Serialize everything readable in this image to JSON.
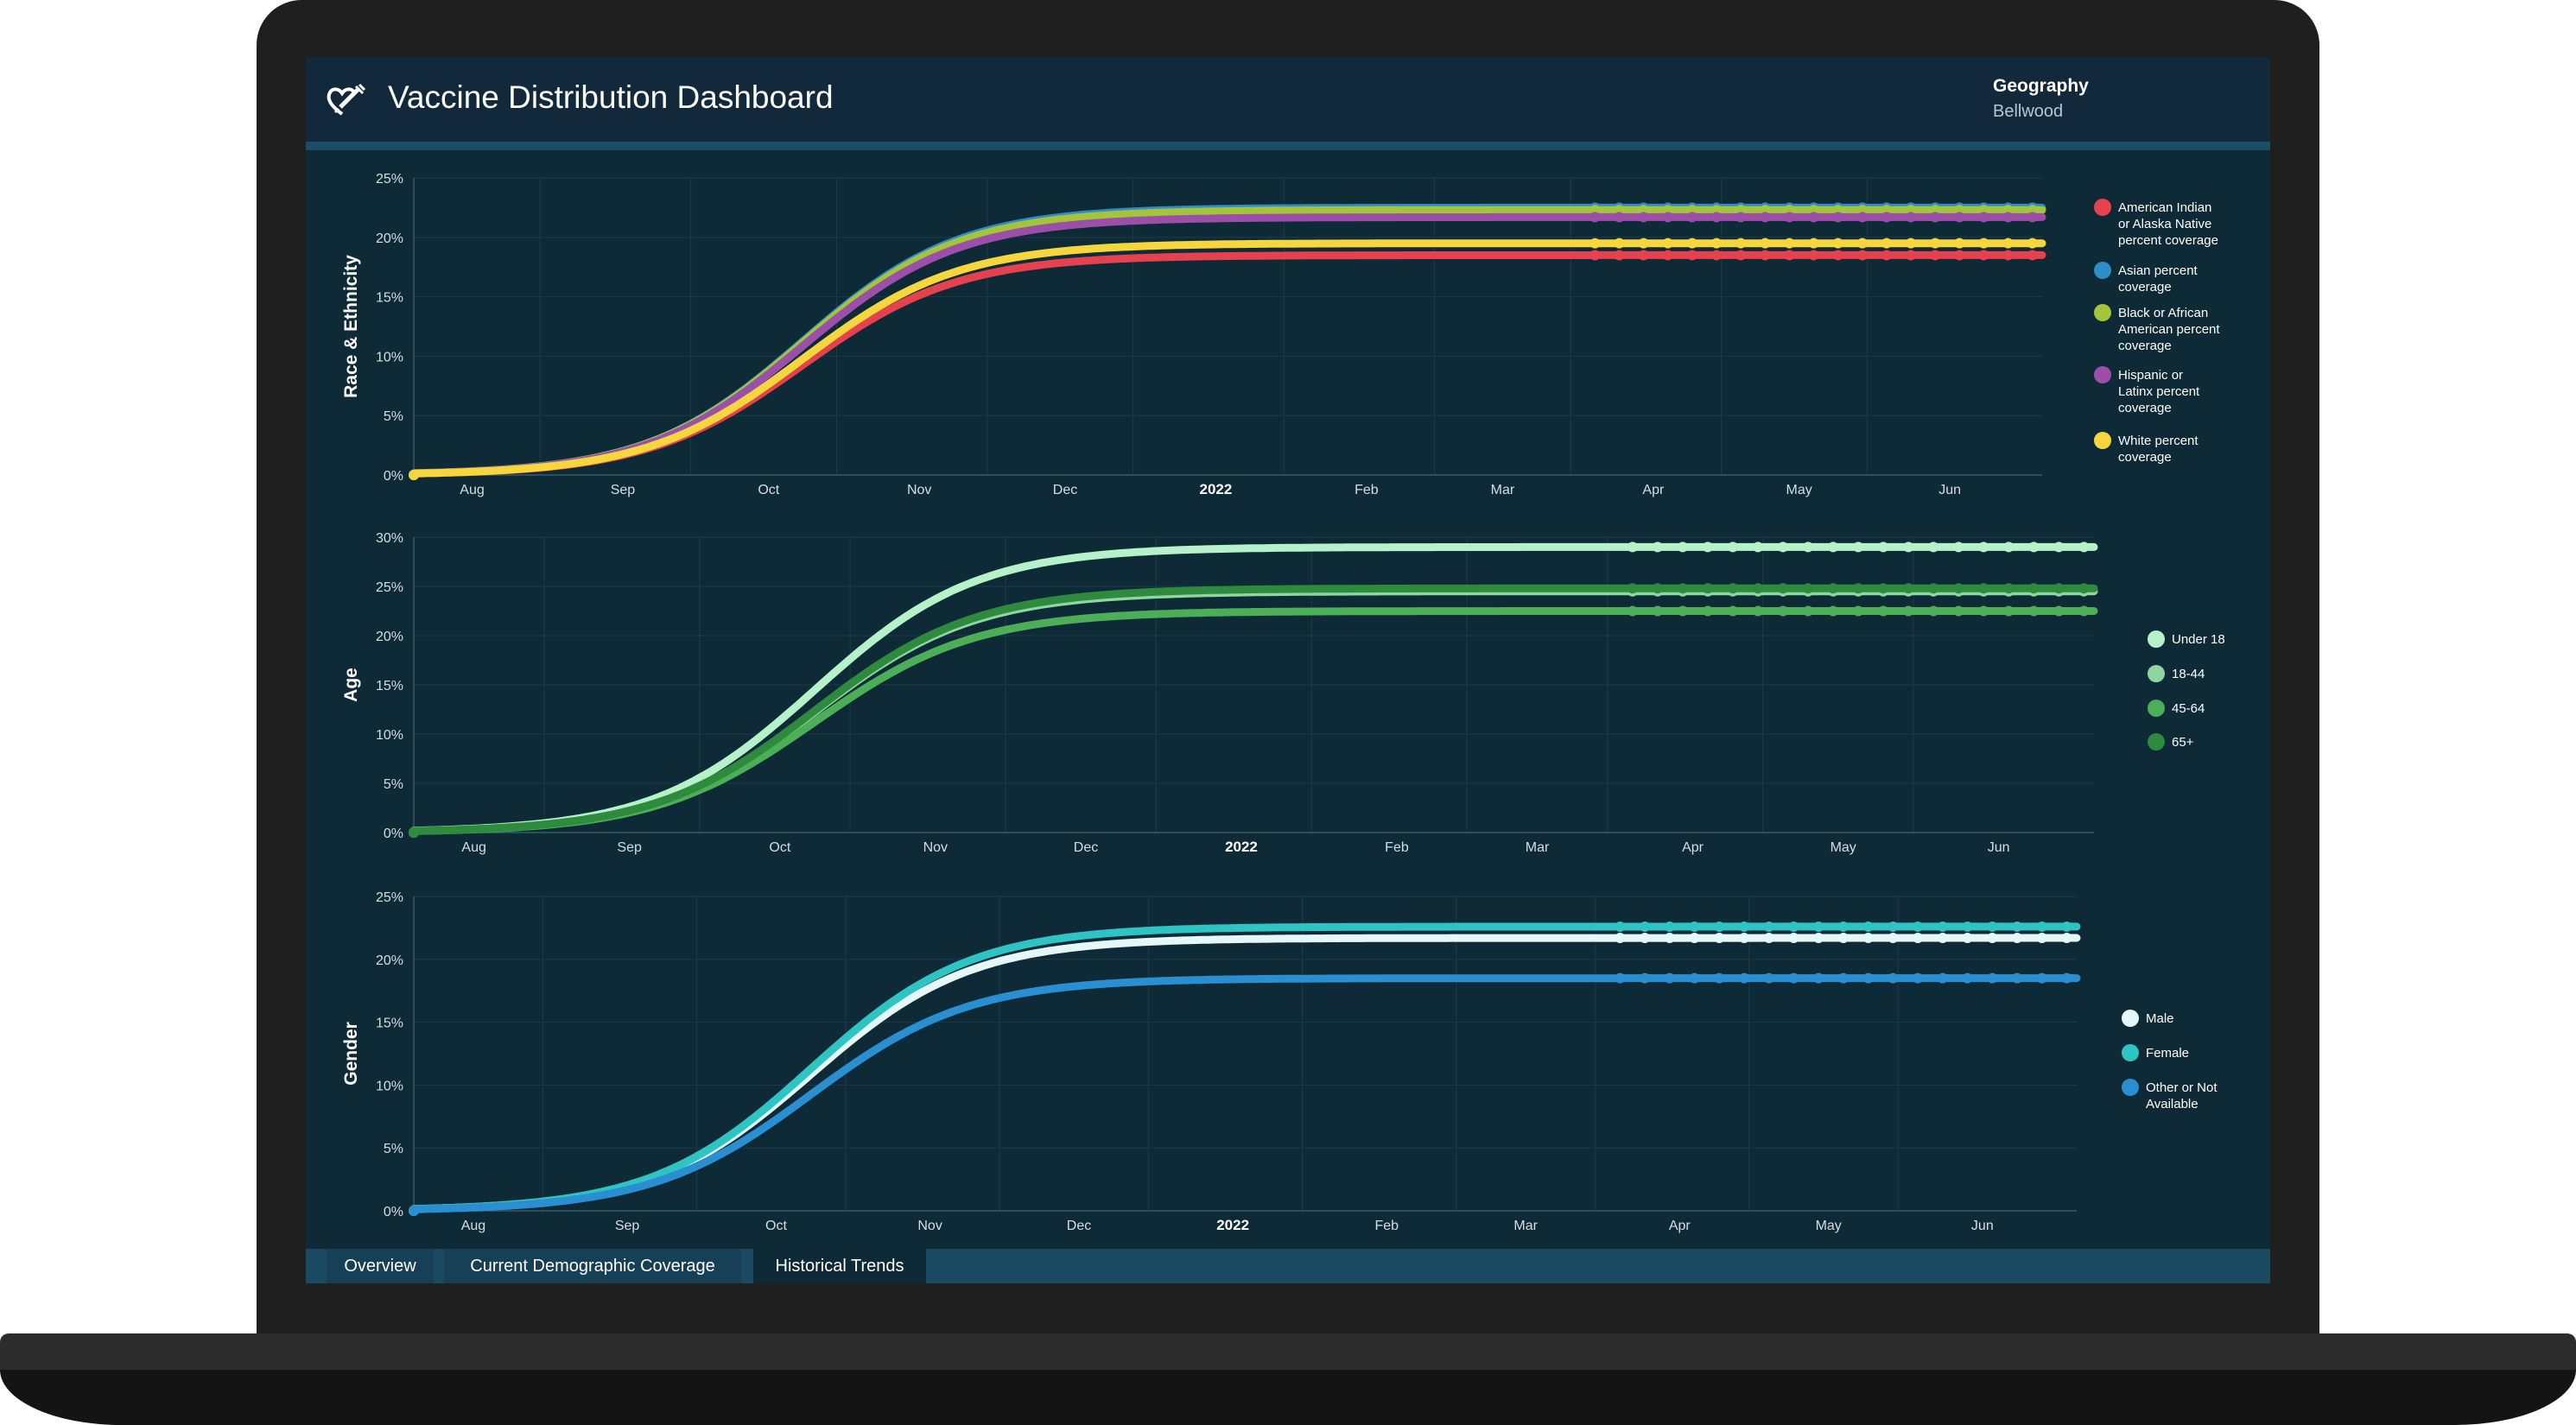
{
  "header": {
    "title": "Vaccine Distribution Dashboard",
    "icon": "heart-syringe-icon",
    "geography_label": "Geography",
    "geography_value": "Bellwood"
  },
  "tabs": [
    {
      "label": "Overview",
      "active": false
    },
    {
      "label": "Current Demographic Coverage",
      "active": false
    },
    {
      "label": "Historical Trends",
      "active": true
    }
  ],
  "chart_data": [
    {
      "type": "line",
      "ylabel": "Race & Ethnicity",
      "ylim": [
        0,
        25
      ],
      "yticks": [
        "0%",
        "5%",
        "10%",
        "15%",
        "20%",
        "25%"
      ],
      "x_tick_labels": [
        "Aug",
        "Sep",
        "Oct",
        "Nov",
        "Dec",
        "2022",
        "Feb",
        "Mar",
        "Apr",
        "May",
        "Jun"
      ],
      "x_start": "2021-07-20",
      "x_end": "2022-06-20",
      "grid": true,
      "legend_position": "right",
      "series": [
        {
          "name": "American Indian or Alaska Native percent coverage",
          "color": "#e5414f",
          "final": 18.5
        },
        {
          "name": "Asian percent coverage",
          "color": "#2e8cc8",
          "final": 22.5
        },
        {
          "name": "Black or African American percent coverage",
          "color": "#a3c43b",
          "final": 22.3
        },
        {
          "name": "Hispanic or Latinx percent coverage",
          "color": "#9b4fa8",
          "final": 21.7
        },
        {
          "name": "White percent coverage",
          "color": "#f5d63d",
          "final": 19.5
        }
      ]
    },
    {
      "type": "line",
      "ylabel": "Age",
      "ylim": [
        0,
        30
      ],
      "yticks": [
        "0%",
        "5%",
        "10%",
        "15%",
        "20%",
        "25%",
        "30%"
      ],
      "x_tick_labels": [
        "Aug",
        "Sep",
        "Oct",
        "Nov",
        "Dec",
        "2022",
        "Feb",
        "Mar",
        "Apr",
        "May",
        "Jun"
      ],
      "x_start": "2021-07-20",
      "x_end": "2022-06-20",
      "grid": true,
      "legend_position": "right",
      "series": [
        {
          "name": "Under 18",
          "color": "#b5f2c9",
          "final": 29.0
        },
        {
          "name": "18-44",
          "color": "#8fd6a0",
          "final": 24.5
        },
        {
          "name": "45-64",
          "color": "#4caf58",
          "final": 22.5
        },
        {
          "name": "65+",
          "color": "#2e8a3d",
          "final": 24.8
        }
      ]
    },
    {
      "type": "line",
      "ylabel": "Gender",
      "ylim": [
        0,
        25
      ],
      "yticks": [
        "0%",
        "5%",
        "10%",
        "15%",
        "20%",
        "25%"
      ],
      "x_tick_labels": [
        "Aug",
        "Sep",
        "Oct",
        "Nov",
        "Dec",
        "2022",
        "Feb",
        "Mar",
        "Apr",
        "May",
        "Jun"
      ],
      "x_start": "2021-07-20",
      "x_end": "2022-06-20",
      "grid": true,
      "legend_position": "right",
      "series": [
        {
          "name": "Male",
          "color": "#e6f7f7",
          "final": 21.7
        },
        {
          "name": "Female",
          "color": "#2ec4c4",
          "final": 22.6
        },
        {
          "name": "Other or Not Available",
          "color": "#2a8fd0",
          "final": 18.5
        }
      ]
    }
  ]
}
